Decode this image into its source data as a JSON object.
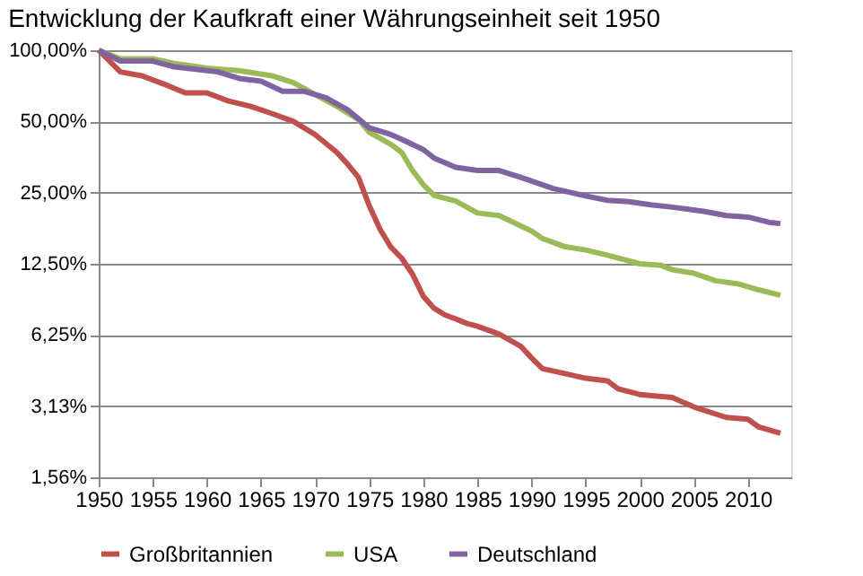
{
  "chart_data": {
    "type": "line",
    "title": "Entwicklung der Kaufkraft einer Währungseinheit seit 1950",
    "log": "y",
    "grid": "y",
    "legend": "bottom",
    "marker": "none",
    "line_style": "solid",
    "xlim": [
      1950,
      2014
    ],
    "xticks": [
      1950,
      1955,
      1960,
      1965,
      1970,
      1975,
      1980,
      1985,
      1990,
      1995,
      2000,
      2005,
      2010
    ],
    "ylim": [
      1.5625,
      100
    ],
    "yticks": [
      {
        "value": 1.5625,
        "label": "1,56%"
      },
      {
        "value": 3.125,
        "label": "3,13%"
      },
      {
        "value": 6.25,
        "label": "6,25%"
      },
      {
        "value": 12.5,
        "label": "12,50%"
      },
      {
        "value": 25,
        "label": "25,00%"
      },
      {
        "value": 50,
        "label": "50,00%"
      },
      {
        "value": 100,
        "label": "100,00%"
      }
    ],
    "series": [
      {
        "name": "Großbritannien",
        "color": "#c0504d",
        "x": [
          1950,
          1952,
          1954,
          1956,
          1958,
          1960,
          1962,
          1964,
          1966,
          1968,
          1970,
          1972,
          1973,
          1974,
          1975,
          1976,
          1977,
          1978,
          1979,
          1980,
          1981,
          1982,
          1983,
          1984,
          1985,
          1987,
          1989,
          1990,
          1991,
          1993,
          1995,
          1997,
          1998,
          2000,
          2003,
          2005,
          2008,
          2010,
          2011,
          2013
        ],
        "values": [
          100,
          81,
          78,
          72,
          66,
          66,
          61,
          58,
          54,
          50,
          44,
          37,
          33,
          29,
          22,
          17.5,
          14.7,
          13.2,
          11.3,
          9.1,
          8.1,
          7.6,
          7.3,
          7.0,
          6.8,
          6.3,
          5.6,
          5.0,
          4.5,
          4.3,
          4.1,
          4.0,
          3.7,
          3.5,
          3.4,
          3.1,
          2.8,
          2.75,
          2.55,
          2.4
        ]
      },
      {
        "name": "USA",
        "color": "#9bbb59",
        "x": [
          1950,
          1952,
          1955,
          1957,
          1960,
          1963,
          1966,
          1968,
          1970,
          1972,
          1974,
          1975,
          1977,
          1978,
          1979,
          1980,
          1981,
          1983,
          1985,
          1987,
          1990,
          1991,
          1993,
          1995,
          1997,
          2000,
          2002,
          2003,
          2005,
          2007,
          2009,
          2011,
          2013
        ],
        "values": [
          100,
          92,
          92,
          88,
          84,
          82,
          78,
          73,
          65,
          58,
          51,
          45,
          40,
          37,
          31,
          27,
          24.3,
          23,
          20.5,
          20,
          17.2,
          16,
          14.8,
          14.3,
          13.6,
          12.5,
          12.3,
          11.8,
          11.4,
          10.6,
          10.3,
          9.7,
          9.2
        ]
      },
      {
        "name": "Deutschland",
        "color": "#8064a2",
        "x": [
          1950,
          1952,
          1955,
          1957,
          1959,
          1961,
          1963,
          1965,
          1967,
          1969,
          1971,
          1973,
          1975,
          1977,
          1978,
          1980,
          1981,
          1983,
          1985,
          1987,
          1989,
          1992,
          1995,
          1997,
          1999,
          2001,
          2003,
          2006,
          2008,
          2010,
          2012,
          2013
        ],
        "values": [
          100,
          90,
          90,
          85,
          83,
          81,
          76,
          74,
          67,
          67,
          63,
          56,
          47,
          44,
          42,
          38,
          35,
          32,
          31,
          31,
          29,
          26,
          24.2,
          23.2,
          22.9,
          22.2,
          21.7,
          20.8,
          20,
          19.7,
          18.7,
          18.5
        ]
      }
    ]
  }
}
